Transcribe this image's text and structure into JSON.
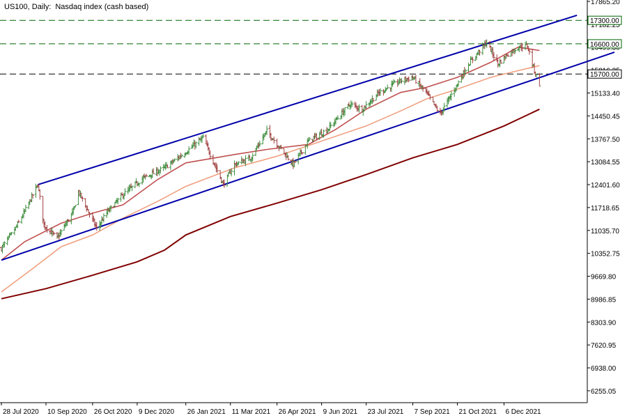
{
  "chart_data": {
    "type": "candlestick",
    "title": "US100, Daily:  Nasdaq index (cash based)",
    "symbol": "US100",
    "timeframe": "Daily",
    "description": "Nasdaq index (cash based)",
    "ylim": [
      5900,
      17865
    ],
    "y_ticks": [
      "17865.20",
      "17182.25",
      "16499.30",
      "15816.35",
      "15133.40",
      "14450.45",
      "13767.50",
      "13084.55",
      "12401.60",
      "11718.65",
      "11035.70",
      "10352.75",
      "9669.80",
      "8986.85",
      "8303.90",
      "7620.95",
      "6938.00",
      "6255.05"
    ],
    "x_ticks": [
      "28 Jul 2020",
      "10 Sep 2020",
      "26 Oct 2020",
      "9 Dec 2020",
      "26 Jan 2021",
      "11 Mar 2021",
      "26 Apr 2021",
      "9 Jun 2021",
      "23 Jul 2021",
      "7 Sep 2021",
      "21 Oct 2021",
      "6 Dec 2021"
    ],
    "price_levels": [
      {
        "value": 17300,
        "label": "17300.00",
        "color": "#006400"
      },
      {
        "value": 16600,
        "label": "16600.00",
        "color": "#006400"
      },
      {
        "value": 15700,
        "label": "15700.00",
        "color": "#000000"
      }
    ],
    "close_path": [
      {
        "date": "2020-07-28",
        "close": 10500
      },
      {
        "date": "2020-08-10",
        "close": 11050
      },
      {
        "date": "2020-08-20",
        "close": 11600
      },
      {
        "date": "2020-09-02",
        "close": 12400
      },
      {
        "date": "2020-09-08",
        "close": 11200
      },
      {
        "date": "2020-09-21",
        "close": 10800
      },
      {
        "date": "2020-10-07",
        "close": 11600
      },
      {
        "date": "2020-10-12",
        "close": 12200
      },
      {
        "date": "2020-10-30",
        "close": 11100
      },
      {
        "date": "2020-11-10",
        "close": 11600
      },
      {
        "date": "2020-11-25",
        "close": 12100
      },
      {
        "date": "2020-12-15",
        "close": 12600
      },
      {
        "date": "2021-01-05",
        "close": 12900
      },
      {
        "date": "2021-01-25",
        "close": 13350
      },
      {
        "date": "2021-02-12",
        "close": 13800
      },
      {
        "date": "2021-03-04",
        "close": 12400
      },
      {
        "date": "2021-03-15",
        "close": 13000
      },
      {
        "date": "2021-03-31",
        "close": 13200
      },
      {
        "date": "2021-04-16",
        "close": 14000
      },
      {
        "date": "2021-05-12",
        "close": 13000
      },
      {
        "date": "2021-05-27",
        "close": 13700
      },
      {
        "date": "2021-06-15",
        "close": 14050
      },
      {
        "date": "2021-07-07",
        "close": 14800
      },
      {
        "date": "2021-07-19",
        "close": 14650
      },
      {
        "date": "2021-08-05",
        "close": 15150
      },
      {
        "date": "2021-08-26",
        "close": 15500
      },
      {
        "date": "2021-09-07",
        "close": 15600
      },
      {
        "date": "2021-09-20",
        "close": 15150
      },
      {
        "date": "2021-10-04",
        "close": 14500
      },
      {
        "date": "2021-10-21",
        "close": 15400
      },
      {
        "date": "2021-11-01",
        "close": 16000
      },
      {
        "date": "2021-11-19",
        "close": 16650
      },
      {
        "date": "2021-11-30",
        "close": 16000
      },
      {
        "date": "2021-12-10",
        "close": 16300
      },
      {
        "date": "2021-12-20",
        "close": 16500
      },
      {
        "date": "2021-12-29",
        "close": 16550
      },
      {
        "date": "2022-01-05",
        "close": 15800
      },
      {
        "date": "2022-01-10",
        "close": 15400
      }
    ],
    "trend_lines": [
      {
        "name": "upper-channel",
        "color": "#0000aa",
        "p1": {
          "date": "2020-09-02",
          "value": 12400
        },
        "p2": {
          "date": "2022-02-16",
          "value": 17450
        }
      },
      {
        "name": "lower-channel",
        "color": "#0000aa",
        "p1": {
          "date": "2020-07-28",
          "value": 10150
        },
        "p2": {
          "date": "2022-03-25",
          "value": 16350
        }
      }
    ],
    "moving_averages": [
      {
        "name": "ma-fast",
        "color": "#c05050",
        "points": [
          [
            "2020-07-28",
            10150
          ],
          [
            "2020-08-20",
            10700
          ],
          [
            "2020-09-25",
            11250
          ],
          [
            "2020-10-26",
            11550
          ],
          [
            "2020-11-25",
            11800
          ],
          [
            "2020-12-29",
            12550
          ],
          [
            "2021-01-26",
            13050
          ],
          [
            "2021-03-15",
            13300
          ],
          [
            "2021-04-16",
            13450
          ],
          [
            "2021-05-27",
            13600
          ],
          [
            "2021-06-23",
            14050
          ],
          [
            "2021-07-23",
            14650
          ],
          [
            "2021-08-26",
            15150
          ],
          [
            "2021-09-20",
            15300
          ],
          [
            "2021-10-21",
            15600
          ],
          [
            "2021-11-23",
            16050
          ],
          [
            "2021-12-20",
            16500
          ],
          [
            "2022-01-10",
            16400
          ]
        ]
      },
      {
        "name": "ma-medium",
        "color": "#f0a080",
        "points": [
          [
            "2020-07-28",
            9200
          ],
          [
            "2020-08-28",
            9900
          ],
          [
            "2020-09-25",
            10550
          ],
          [
            "2020-10-26",
            10900
          ],
          [
            "2020-11-25",
            11400
          ],
          [
            "2020-12-29",
            11900
          ],
          [
            "2021-01-26",
            12350
          ],
          [
            "2021-03-15",
            12900
          ],
          [
            "2021-04-26",
            13250
          ],
          [
            "2021-06-09",
            13700
          ],
          [
            "2021-07-23",
            14150
          ],
          [
            "2021-08-26",
            14600
          ],
          [
            "2021-09-20",
            14950
          ],
          [
            "2021-10-21",
            15250
          ],
          [
            "2021-11-23",
            15600
          ],
          [
            "2021-12-20",
            15800
          ],
          [
            "2022-01-10",
            15950
          ]
        ]
      },
      {
        "name": "ma-slow",
        "color": "#800000",
        "points": [
          [
            "2020-07-28",
            9000
          ],
          [
            "2020-09-10",
            9300
          ],
          [
            "2020-10-26",
            9700
          ],
          [
            "2020-12-09",
            10100
          ],
          [
            "2021-01-05",
            10450
          ],
          [
            "2021-01-26",
            10900
          ],
          [
            "2021-03-11",
            11450
          ],
          [
            "2021-04-26",
            11850
          ],
          [
            "2021-06-09",
            12250
          ],
          [
            "2021-07-23",
            12700
          ],
          [
            "2021-09-07",
            13200
          ],
          [
            "2021-10-21",
            13600
          ],
          [
            "2021-12-06",
            14150
          ],
          [
            "2022-01-10",
            14650
          ]
        ]
      }
    ]
  },
  "colors": {
    "bull": "#3c8c3c",
    "bear": "#a04040",
    "axis": "#000000",
    "level_label_bg": "#ffffff"
  }
}
